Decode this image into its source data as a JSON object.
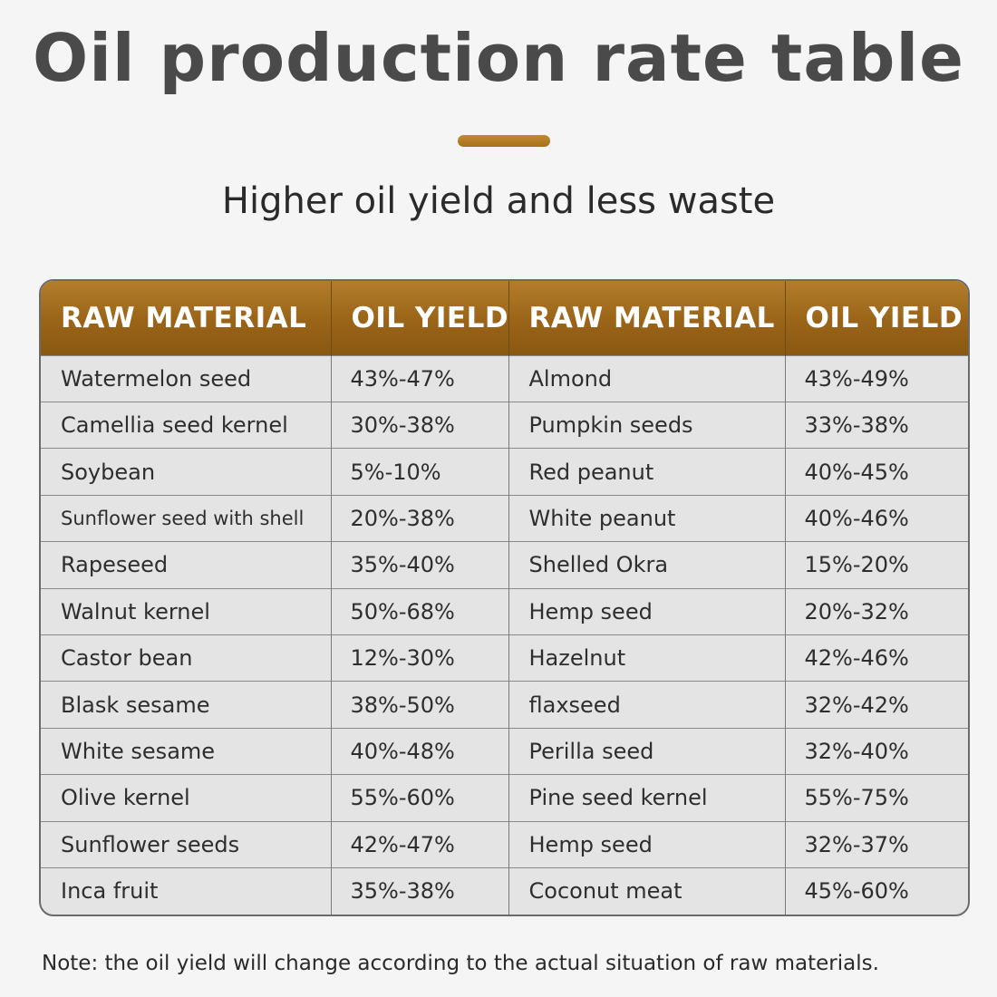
{
  "title": "Oil production rate table",
  "subtitle": "Higher oil yield and less waste",
  "table": {
    "headers": [
      "RAW MATERIAL",
      "OIL YIELD",
      "RAW MATERIAL",
      "OIL YIELD"
    ],
    "rows": [
      [
        "Watermelon seed",
        "43%-47%",
        "Almond",
        "43%-49%"
      ],
      [
        "Camellia seed kernel",
        "30%-38%",
        "Pumpkin seeds",
        "33%-38%"
      ],
      [
        "Soybean",
        "5%-10%",
        "Red peanut",
        "40%-45%"
      ],
      [
        "Sunflower seed with shell",
        "20%-38%",
        "White peanut",
        "40%-46%"
      ],
      [
        "Rapeseed",
        "35%-40%",
        "Shelled Okra",
        "15%-20%"
      ],
      [
        "Walnut kernel",
        "50%-68%",
        "Hemp seed",
        "20%-32%"
      ],
      [
        "Castor bean",
        "12%-30%",
        "Hazelnut",
        "42%-46%"
      ],
      [
        "Blask sesame",
        "38%-50%",
        "flaxseed",
        "32%-42%"
      ],
      [
        "White sesame",
        "40%-48%",
        "Perilla seed",
        "32%-40%"
      ],
      [
        "Olive kernel",
        "55%-60%",
        "Pine seed kernel",
        "55%-75%"
      ],
      [
        "Sunflower seeds",
        "42%-47%",
        "Hemp seed",
        "32%-37%"
      ],
      [
        "Inca fruit",
        "35%-38%",
        "Coconut meat",
        "45%-60%"
      ]
    ]
  },
  "note": "Note: the oil yield will change according to the actual situation of raw materials.",
  "colors": {
    "accent": "#a8711e",
    "header_bg": "#9a6418",
    "row_bg": "#e4e4e4",
    "page_bg": "#f5f5f5"
  }
}
